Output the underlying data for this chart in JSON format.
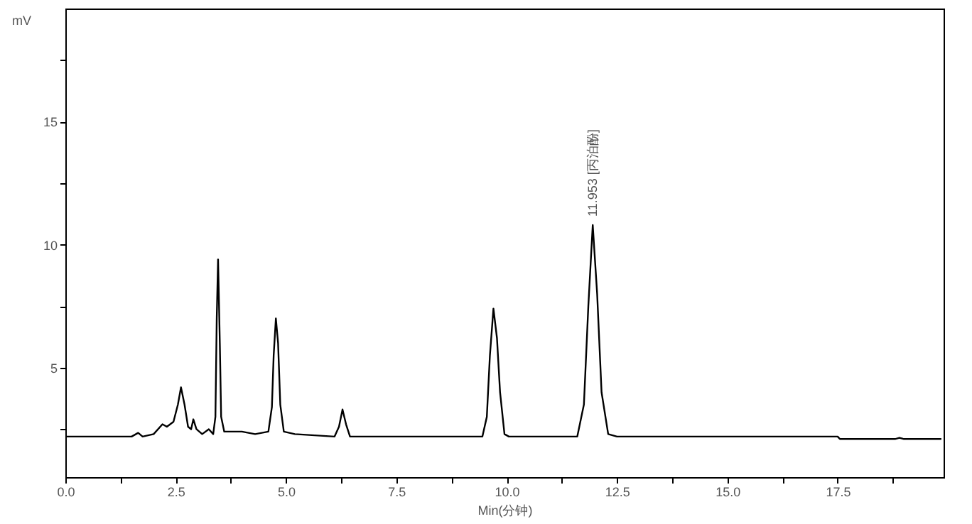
{
  "chart_data": {
    "type": "line",
    "xlabel": "Min(分钟)",
    "ylabel": "mV",
    "x": [
      0,
      1.5,
      1.65,
      1.75,
      2.0,
      2.2,
      2.3,
      2.45,
      2.55,
      2.62,
      2.7,
      2.78,
      2.85,
      2.9,
      2.97,
      3.1,
      3.25,
      3.35,
      3.4,
      3.43,
      3.46,
      3.5,
      3.53,
      3.6,
      3.8,
      4.0,
      4.3,
      4.6,
      4.68,
      4.72,
      4.77,
      4.82,
      4.87,
      4.95,
      5.2,
      6.1,
      6.2,
      6.28,
      6.36,
      6.45,
      9.45,
      9.55,
      9.62,
      9.7,
      9.78,
      9.85,
      9.95,
      10.05,
      11.6,
      11.75,
      11.85,
      11.95,
      12.05,
      12.15,
      12.3,
      12.5,
      17.5,
      17.55,
      18.8,
      18.9,
      19.0,
      19.85
    ],
    "series": [
      {
        "color": "#000000",
        "values": [
          2.2,
          2.2,
          2.35,
          2.2,
          2.3,
          2.7,
          2.6,
          2.8,
          3.5,
          4.2,
          3.5,
          2.6,
          2.5,
          2.9,
          2.5,
          2.3,
          2.5,
          2.3,
          3.0,
          7.0,
          9.4,
          6.0,
          3.0,
          2.4,
          2.4,
          2.4,
          2.3,
          2.4,
          3.4,
          5.5,
          7.0,
          6.0,
          3.5,
          2.4,
          2.3,
          2.2,
          2.6,
          3.3,
          2.7,
          2.2,
          2.2,
          3.0,
          5.5,
          7.4,
          6.2,
          4.0,
          2.3,
          2.2,
          2.2,
          3.5,
          7.5,
          10.8,
          8.0,
          4.0,
          2.3,
          2.2,
          2.2,
          2.1,
          2.1,
          2.15,
          2.1,
          2.1
        ]
      }
    ],
    "xlim": [
      0,
      19.9
    ],
    "ylim": [
      0.55,
      19.6
    ],
    "xticks": [
      {
        "value": 0,
        "label": "0.0"
      },
      {
        "value": 1.25,
        "label": null
      },
      {
        "value": 2.5,
        "label": "2.5"
      },
      {
        "value": 3.75,
        "label": null
      },
      {
        "value": 5,
        "label": "5.0"
      },
      {
        "value": 6.25,
        "label": null
      },
      {
        "value": 7.5,
        "label": "7.5"
      },
      {
        "value": 8.75,
        "label": null
      },
      {
        "value": 10,
        "label": "10.0"
      },
      {
        "value": 11.25,
        "label": null
      },
      {
        "value": 12.5,
        "label": "12.5"
      },
      {
        "value": 13.75,
        "label": null
      },
      {
        "value": 15,
        "label": "15.0"
      },
      {
        "value": 16.25,
        "label": null
      },
      {
        "value": 17.5,
        "label": "17.5"
      },
      {
        "value": 18.75,
        "label": null
      }
    ],
    "yticks": [
      {
        "value": 2.5,
        "label": null
      },
      5,
      {
        "value": 7.5,
        "label": null
      },
      10,
      {
        "value": 12.5,
        "label": null
      },
      15,
      {
        "value": 17.5,
        "label": null
      }
    ],
    "annotations": [
      {
        "text": "11.953 [丙泊酚]",
        "x": 11.953,
        "y": 10.8
      }
    ],
    "grid": false,
    "marker": "none",
    "line_style": "solid"
  }
}
